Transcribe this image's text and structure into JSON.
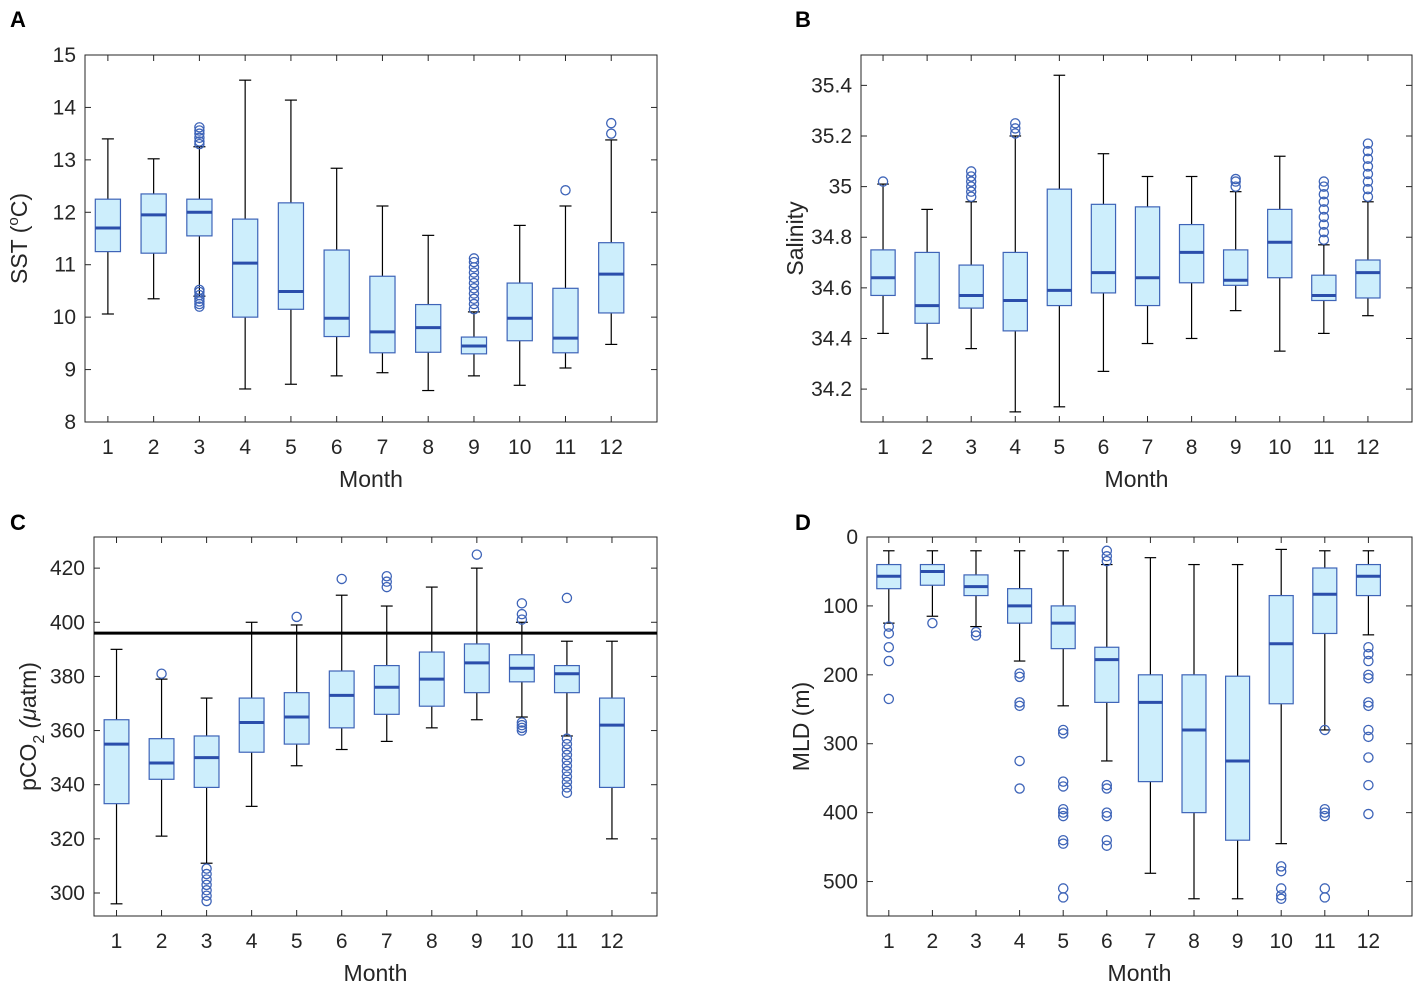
{
  "colors": {
    "box_fill": "#cdeefc",
    "box_edge": "#3e64b8",
    "median": "#2b4eab",
    "whisker": "#000000",
    "outlier": "#3e64b8",
    "axis": "#262626",
    "reference_line": "#000000"
  },
  "chart_data": [
    {
      "panel": "A",
      "type": "box",
      "xlabel": "Month",
      "ylabel": "SST (ºC)",
      "ylabel_pre": "SST (",
      "ylabel_sup": "o",
      "ylabel_post": "C)",
      "categories": [
        "1",
        "2",
        "3",
        "4",
        "5",
        "6",
        "7",
        "8",
        "9",
        "10",
        "11",
        "12"
      ],
      "ylim": [
        8,
        15
      ],
      "yticks": [
        8,
        9,
        10,
        11,
        12,
        13,
        14,
        15
      ],
      "ytick_labels": [
        "8",
        "9",
        "10",
        "11",
        "12",
        "13",
        "14",
        "15"
      ],
      "reversed": false,
      "boxes": [
        {
          "whislo": 10.06,
          "q1": 11.25,
          "med": 11.7,
          "q3": 12.25,
          "whishi": 13.4,
          "outliers": []
        },
        {
          "whislo": 10.35,
          "q1": 11.22,
          "med": 11.95,
          "q3": 12.35,
          "whishi": 13.02,
          "outliers": []
        },
        {
          "whislo": 10.4,
          "q1": 11.55,
          "med": 12.0,
          "q3": 12.25,
          "whishi": 13.25,
          "outliers": [
            10.2,
            10.25,
            10.3,
            10.35,
            10.42,
            10.48,
            10.52,
            13.3,
            13.35,
            13.42,
            13.5,
            13.56,
            13.62
          ]
        },
        {
          "whislo": 8.63,
          "q1": 10.0,
          "med": 11.03,
          "q3": 11.87,
          "whishi": 14.52,
          "outliers": []
        },
        {
          "whislo": 8.72,
          "q1": 10.15,
          "med": 10.49,
          "q3": 12.18,
          "whishi": 14.14,
          "outliers": []
        },
        {
          "whislo": 8.88,
          "q1": 9.63,
          "med": 9.98,
          "q3": 11.28,
          "whishi": 12.84,
          "outliers": []
        },
        {
          "whislo": 8.94,
          "q1": 9.32,
          "med": 9.72,
          "q3": 10.78,
          "whishi": 12.12,
          "outliers": []
        },
        {
          "whislo": 8.6,
          "q1": 9.33,
          "med": 9.8,
          "q3": 10.24,
          "whishi": 11.56,
          "outliers": []
        },
        {
          "whislo": 8.88,
          "q1": 9.3,
          "med": 9.45,
          "q3": 9.62,
          "whishi": 10.1,
          "outliers": [
            10.15,
            10.25,
            10.35,
            10.45,
            10.55,
            10.65,
            10.75,
            10.85,
            10.95,
            11.05,
            11.12
          ]
        },
        {
          "whislo": 8.7,
          "q1": 9.55,
          "med": 9.98,
          "q3": 10.65,
          "whishi": 11.75,
          "outliers": []
        },
        {
          "whislo": 9.03,
          "q1": 9.32,
          "med": 9.6,
          "q3": 10.55,
          "whishi": 12.12,
          "outliers": [
            12.42
          ]
        },
        {
          "whislo": 9.48,
          "q1": 10.08,
          "med": 10.82,
          "q3": 11.42,
          "whishi": 13.38,
          "outliers": [
            13.5,
            13.7
          ]
        }
      ]
    },
    {
      "panel": "B",
      "type": "box",
      "xlabel": "Month",
      "ylabel": "Salinity",
      "categories": [
        "1",
        "2",
        "3",
        "4",
        "5",
        "6",
        "7",
        "8",
        "9",
        "10",
        "11",
        "12"
      ],
      "ylim": [
        34.07,
        35.52
      ],
      "yticks": [
        34.2,
        34.4,
        34.6,
        34.8,
        35.0,
        35.2,
        35.4
      ],
      "ytick_labels": [
        "34.2",
        "34.4",
        "34.6",
        "34.8",
        "35",
        "35.2",
        "35.4"
      ],
      "reversed": false,
      "boxes": [
        {
          "whislo": 34.42,
          "q1": 34.57,
          "med": 34.64,
          "q3": 34.75,
          "whishi": 35.01,
          "outliers": [
            35.02
          ]
        },
        {
          "whislo": 34.32,
          "q1": 34.46,
          "med": 34.53,
          "q3": 34.74,
          "whishi": 34.91,
          "outliers": []
        },
        {
          "whislo": 34.36,
          "q1": 34.52,
          "med": 34.57,
          "q3": 34.69,
          "whishi": 34.94,
          "outliers": [
            34.96,
            34.98,
            35.0,
            35.02,
            35.04,
            35.06
          ]
        },
        {
          "whislo": 34.11,
          "q1": 34.43,
          "med": 34.55,
          "q3": 34.74,
          "whishi": 35.2,
          "outliers": [
            35.21,
            35.23,
            35.25
          ]
        },
        {
          "whislo": 34.13,
          "q1": 34.53,
          "med": 34.59,
          "q3": 34.99,
          "whishi": 35.44,
          "outliers": []
        },
        {
          "whislo": 34.27,
          "q1": 34.58,
          "med": 34.66,
          "q3": 34.93,
          "whishi": 35.13,
          "outliers": []
        },
        {
          "whislo": 34.38,
          "q1": 34.53,
          "med": 34.64,
          "q3": 34.92,
          "whishi": 35.04,
          "outliers": []
        },
        {
          "whislo": 34.4,
          "q1": 34.62,
          "med": 34.74,
          "q3": 34.85,
          "whishi": 35.04,
          "outliers": []
        },
        {
          "whislo": 34.51,
          "q1": 34.61,
          "med": 34.63,
          "q3": 34.75,
          "whishi": 34.98,
          "outliers": [
            35.0,
            35.02,
            35.03
          ]
        },
        {
          "whislo": 34.35,
          "q1": 34.64,
          "med": 34.78,
          "q3": 34.91,
          "whishi": 35.12,
          "outliers": []
        },
        {
          "whislo": 34.42,
          "q1": 34.55,
          "med": 34.57,
          "q3": 34.65,
          "whishi": 34.77,
          "outliers": [
            34.79,
            34.82,
            34.85,
            34.88,
            34.91,
            34.94,
            34.97,
            35.0,
            35.02
          ]
        },
        {
          "whislo": 34.49,
          "q1": 34.56,
          "med": 34.66,
          "q3": 34.71,
          "whishi": 34.94,
          "outliers": [
            34.96,
            34.99,
            35.02,
            35.05,
            35.08,
            35.11,
            35.14,
            35.17
          ]
        }
      ]
    },
    {
      "panel": "C",
      "type": "box",
      "xlabel": "Month",
      "ylabel": "pCO2 (μatm)",
      "ylabel_pre": "pCO",
      "ylabel_sub": "2",
      "ylabel_post_italic": " (μ",
      "ylabel_post": "atm)",
      "categories": [
        "1",
        "2",
        "3",
        "4",
        "5",
        "6",
        "7",
        "8",
        "9",
        "10",
        "11",
        "12"
      ],
      "ylim": [
        291.5,
        431.5
      ],
      "yticks": [
        300,
        320,
        340,
        360,
        380,
        400,
        420
      ],
      "ytick_labels": [
        "300",
        "320",
        "340",
        "360",
        "380",
        "400",
        "420"
      ],
      "reversed": false,
      "reference_line": 396,
      "boxes": [
        {
          "whislo": 296,
          "q1": 333,
          "med": 355,
          "q3": 364,
          "whishi": 390,
          "outliers": []
        },
        {
          "whislo": 321,
          "q1": 342,
          "med": 348,
          "q3": 357,
          "whishi": 379,
          "outliers": [
            381
          ]
        },
        {
          "whislo": 311,
          "q1": 339,
          "med": 350,
          "q3": 358,
          "whishi": 372,
          "outliers": [
            297,
            299,
            301,
            303,
            305,
            307,
            309
          ]
        },
        {
          "whislo": 332,
          "q1": 352,
          "med": 363,
          "q3": 372,
          "whishi": 400,
          "outliers": []
        },
        {
          "whislo": 347,
          "q1": 355,
          "med": 365,
          "q3": 374,
          "whishi": 399,
          "outliers": [
            402
          ]
        },
        {
          "whislo": 353,
          "q1": 361,
          "med": 373,
          "q3": 382,
          "whishi": 410,
          "outliers": [
            416
          ]
        },
        {
          "whislo": 356,
          "q1": 366,
          "med": 376,
          "q3": 384,
          "whishi": 406,
          "outliers": [
            413,
            415,
            417
          ]
        },
        {
          "whislo": 361,
          "q1": 369,
          "med": 379,
          "q3": 389,
          "whishi": 413,
          "outliers": []
        },
        {
          "whislo": 364,
          "q1": 374,
          "med": 385,
          "q3": 392,
          "whishi": 420,
          "outliers": [
            425
          ]
        },
        {
          "whislo": 365,
          "q1": 378,
          "med": 383,
          "q3": 388,
          "whishi": 400,
          "outliers": [
            360,
            361,
            362,
            363,
            401,
            403,
            407
          ]
        },
        {
          "whislo": 358,
          "q1": 374,
          "med": 381,
          "q3": 384,
          "whishi": 393,
          "outliers": [
            337,
            339,
            341,
            343,
            345,
            347,
            349,
            351,
            353,
            355,
            357,
            409
          ]
        },
        {
          "whislo": 320,
          "q1": 339,
          "med": 362,
          "q3": 372,
          "whishi": 393,
          "outliers": []
        }
      ]
    },
    {
      "panel": "D",
      "type": "box",
      "xlabel": "Month",
      "ylabel": "MLD (m)",
      "categories": [
        "1",
        "2",
        "3",
        "4",
        "5",
        "6",
        "7",
        "8",
        "9",
        "10",
        "11",
        "12"
      ],
      "ylim": [
        0,
        550
      ],
      "yticks": [
        0,
        100,
        200,
        300,
        400,
        500
      ],
      "ytick_labels": [
        "0",
        "100",
        "200",
        "300",
        "400",
        "500"
      ],
      "reversed": true,
      "boxes": [
        {
          "whislo": 20,
          "q1": 40,
          "med": 57,
          "q3": 75,
          "whishi": 125,
          "outliers": [
            130,
            140,
            160,
            180,
            235
          ]
        },
        {
          "whislo": 20,
          "q1": 40,
          "med": 50,
          "q3": 70,
          "whishi": 115,
          "outliers": [
            125
          ]
        },
        {
          "whislo": 20,
          "q1": 55,
          "med": 72,
          "q3": 85,
          "whishi": 130,
          "outliers": [
            138,
            143
          ]
        },
        {
          "whislo": 20,
          "q1": 75,
          "med": 100,
          "q3": 125,
          "whishi": 180,
          "outliers": [
            198,
            203,
            240,
            245,
            325,
            365
          ]
        },
        {
          "whislo": 20,
          "q1": 100,
          "med": 125,
          "q3": 162,
          "whishi": 245,
          "outliers": [
            280,
            285,
            355,
            362,
            395,
            400,
            405,
            440,
            445,
            510,
            523
          ]
        },
        {
          "whislo": 40,
          "q1": 160,
          "med": 178,
          "q3": 240,
          "whishi": 325,
          "outliers": [
            20,
            28,
            35,
            360,
            365,
            400,
            405,
            440,
            448
          ]
        },
        {
          "whislo": 30,
          "q1": 200,
          "med": 240,
          "q3": 355,
          "whishi": 488,
          "outliers": []
        },
        {
          "whislo": 40,
          "q1": 200,
          "med": 280,
          "q3": 400,
          "whishi": 525,
          "outliers": []
        },
        {
          "whislo": 40,
          "q1": 202,
          "med": 325,
          "q3": 440,
          "whishi": 525,
          "outliers": []
        },
        {
          "whislo": 18,
          "q1": 85,
          "med": 155,
          "q3": 242,
          "whishi": 445,
          "outliers": [
            478,
            485,
            510,
            520,
            525
          ]
        },
        {
          "whislo": 20,
          "q1": 45,
          "med": 83,
          "q3": 140,
          "whishi": 280,
          "outliers": [
            280,
            395,
            400,
            405,
            510,
            523
          ]
        },
        {
          "whislo": 20,
          "q1": 40,
          "med": 57,
          "q3": 85,
          "whishi": 142,
          "outliers": [
            160,
            170,
            180,
            200,
            205,
            240,
            245,
            280,
            290,
            320,
            360,
            402
          ]
        }
      ]
    }
  ]
}
